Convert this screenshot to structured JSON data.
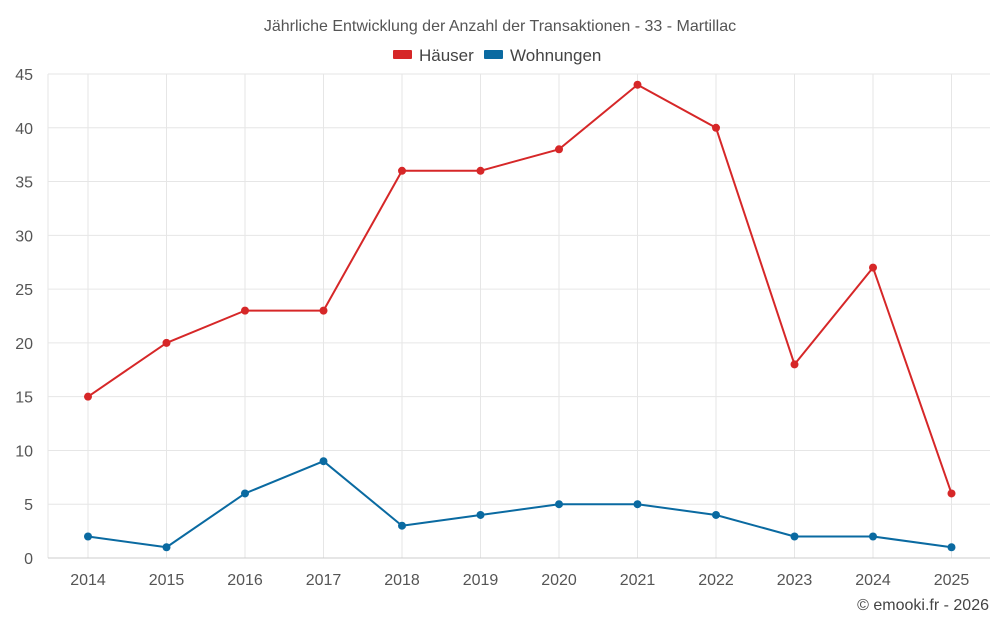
{
  "chart_data": {
    "type": "line",
    "title": "Jährliche Entwicklung der Anzahl der Transaktionen - 33 - Martillac",
    "categories": [
      "2014",
      "2015",
      "2016",
      "2017",
      "2018",
      "2019",
      "2020",
      "2021",
      "2022",
      "2023",
      "2024",
      "2025"
    ],
    "series": [
      {
        "name": "Häuser",
        "color": "#d62728",
        "values": [
          15,
          20,
          23,
          23,
          36,
          36,
          38,
          44,
          40,
          18,
          27,
          6
        ]
      },
      {
        "name": "Wohnungen",
        "color": "#0a6aa1",
        "values": [
          2,
          1,
          6,
          9,
          3,
          4,
          5,
          5,
          4,
          2,
          2,
          1
        ]
      }
    ],
    "ylim": [
      0,
      45
    ],
    "yticks": [
      0,
      5,
      10,
      15,
      20,
      25,
      30,
      35,
      40,
      45
    ],
    "xlabel": "",
    "ylabel": "",
    "grid": true,
    "legend": "top-center"
  },
  "credit": "© emooki.fr - 2026"
}
